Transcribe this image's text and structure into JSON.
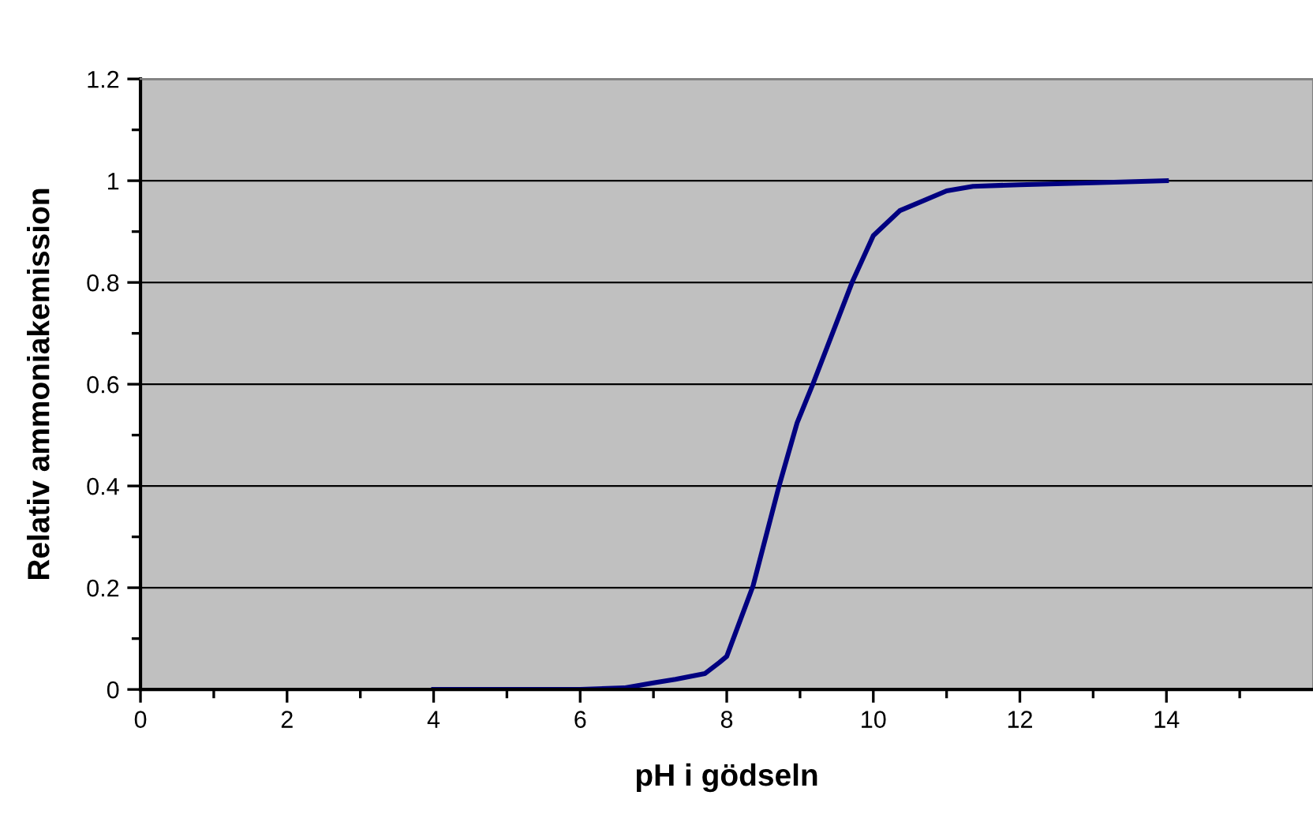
{
  "chart_data": {
    "type": "line",
    "xlabel": "pH i gödseln",
    "ylabel": "Relativ ammoniakemission",
    "series": [
      {
        "color": "#000080",
        "x": [
          4,
          5,
          6,
          6.6,
          7,
          7.3,
          7.7,
          7.9,
          8,
          8.36,
          8.71,
          8.96,
          9.18,
          9.71,
          10,
          10.36,
          11,
          11.36,
          12,
          13,
          14
        ],
        "values": [
          0,
          0,
          0,
          0.003,
          0.013,
          0.02,
          0.031,
          0.053,
          0.065,
          0.204,
          0.398,
          0.524,
          0.602,
          0.8,
          0.892,
          0.941,
          0.98,
          0.989,
          0.992,
          0.996,
          1.0
        ]
      }
    ],
    "xlim": [
      0,
      16
    ],
    "xticks": [
      0,
      2,
      4,
      6,
      8,
      10,
      12,
      14
    ],
    "ylim": [
      0,
      1.2
    ],
    "yticks": [
      0,
      0.2,
      0.4,
      0.6,
      0.8,
      1,
      1.2
    ],
    "grid": "y",
    "marker": "none",
    "line_style": "solid"
  }
}
